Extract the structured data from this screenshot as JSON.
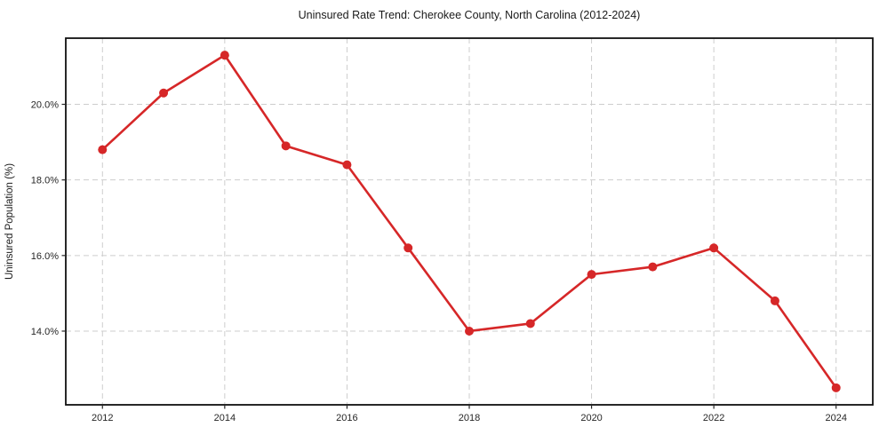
{
  "chart_data": {
    "type": "line",
    "title": "Uninsured Rate Trend: Cherokee County, North Carolina (2012-2024)",
    "xlabel": "",
    "ylabel": "Uninsured Population (%)",
    "series": [
      {
        "name": "Uninsured Population (%)",
        "x": [
          2012,
          2013,
          2014,
          2015,
          2016,
          2017,
          2018,
          2019,
          2020,
          2021,
          2022,
          2023,
          2024
        ],
        "values": [
          18.8,
          20.3,
          21.3,
          18.9,
          18.4,
          16.2,
          14.0,
          14.2,
          15.5,
          15.7,
          16.2,
          14.8,
          12.5
        ]
      }
    ],
    "xlim": [
      2011.4,
      2024.6
    ],
    "ylim": [
      12.05,
      21.75
    ],
    "x_ticks": [
      2012,
      2014,
      2016,
      2018,
      2020,
      2022,
      2024
    ],
    "x_tick_labels": [
      "2012",
      "2014",
      "2016",
      "2018",
      "2020",
      "2022",
      "2024"
    ],
    "y_ticks": [
      14,
      16,
      18,
      20
    ],
    "y_tick_labels": [
      "14.0%",
      "16.0%",
      "18.0%",
      "20.0%"
    ],
    "grid": true,
    "grid_style": "dashed",
    "legend": "none",
    "line_color": "#d62728",
    "marker": "circle",
    "grid_color": "#cdcdcd",
    "spine_color": "#111111",
    "tick_color": "#262626",
    "background": "#ffffff"
  }
}
